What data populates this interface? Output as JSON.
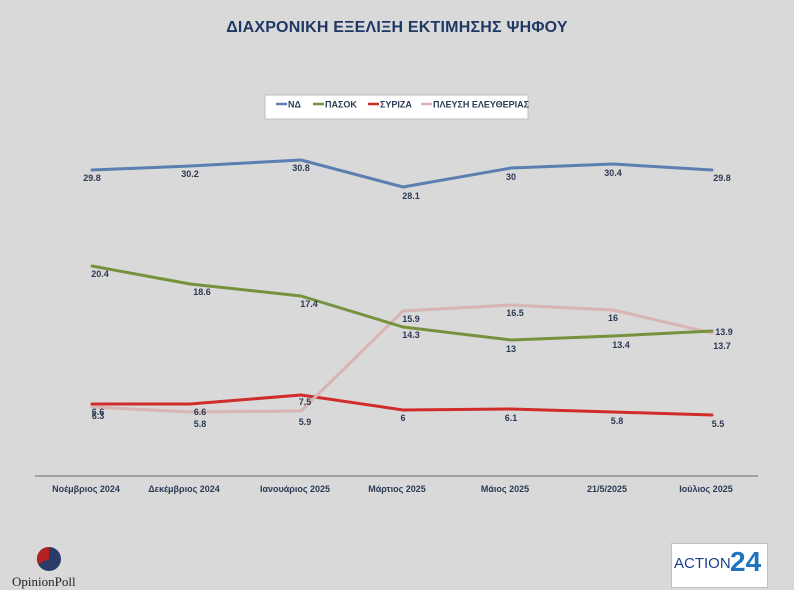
{
  "chart_data": {
    "type": "line",
    "title": "ΔΙΑΧΡΟΝΙΚΗ ΕΞΕΛΙΞΗ ΕΚΤΙΜΗΣΗΣ ΨΗΦΟΥ",
    "categories": [
      "Νοέμβριος 2024",
      "Δεκέμβριος 2024",
      "Ιανουάριος 2025",
      "Μάρτιος 2025",
      "Μάιος 2025",
      "21/5/2025",
      "Ιούλιος 2025"
    ],
    "series": [
      {
        "name": "ΝΔ",
        "color": "#5a7fb0",
        "values": [
          29.8,
          30.2,
          30.8,
          28.1,
          30,
          30.4,
          29.8
        ]
      },
      {
        "name": "ΠΑΣΟΚ",
        "color": "#76923c",
        "values": [
          20.4,
          18.6,
          17.4,
          14.3,
          13,
          13.4,
          13.9
        ]
      },
      {
        "name": "ΣΥΡΙΖΑ",
        "color": "#d02c2c",
        "values": [
          6.6,
          6.6,
          7.5,
          6,
          6.1,
          5.8,
          5.5
        ]
      },
      {
        "name": "ΠΛΕΥΣΗ ΕΛΕΥΘΕΡΙΑΣ",
        "color": "#d8b4b4",
        "values": [
          6.3,
          5.8,
          5.9,
          15.9,
          16.5,
          16,
          13.7
        ]
      }
    ],
    "ylim": [
      0,
      36
    ],
    "legend": "top-center",
    "grid": false
  },
  "logos": {
    "left": "OpinionPoll",
    "right_text": "ACTION",
    "right_number": "24"
  }
}
